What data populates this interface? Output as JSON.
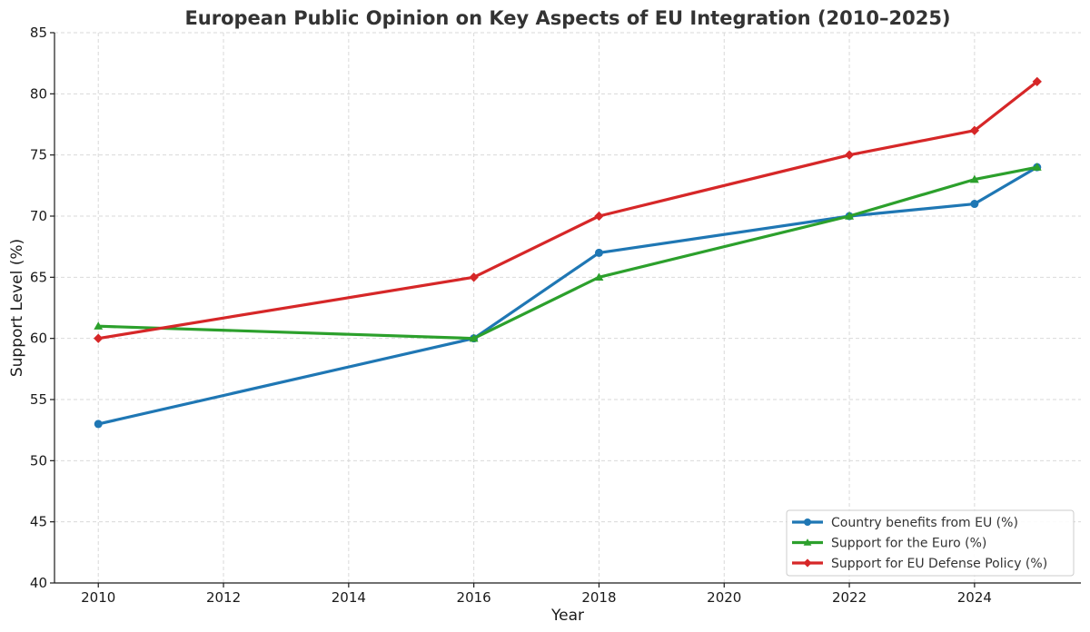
{
  "chart_data": {
    "type": "line",
    "title": "European Public Opinion on Key Aspects of EU Integration (2010–2025)",
    "xlabel": "Year",
    "ylabel": "Support Level (%)",
    "xlim": [
      2009.3,
      2025.7
    ],
    "ylim": [
      40,
      85
    ],
    "xticks": [
      2010,
      2012,
      2014,
      2016,
      2018,
      2020,
      2022,
      2024
    ],
    "yticks": [
      40,
      45,
      50,
      55,
      60,
      65,
      70,
      75,
      80,
      85
    ],
    "grid": true,
    "legend_position": "bottom-right",
    "series": [
      {
        "name": "Country benefits from EU (%)",
        "color": "#1f77b4",
        "marker": "circle",
        "x": [
          2010,
          2016,
          2018,
          2022,
          2024,
          2025
        ],
        "values": [
          53,
          60,
          67,
          70,
          71,
          74
        ]
      },
      {
        "name": "Support for the Euro (%)",
        "color": "#2ca02c",
        "marker": "triangle",
        "x": [
          2010,
          2016,
          2018,
          2022,
          2024,
          2025
        ],
        "values": [
          61,
          60,
          65,
          70,
          73,
          74
        ]
      },
      {
        "name": "Support for EU Defense Policy (%)",
        "color": "#d62728",
        "marker": "diamond",
        "x": [
          2010,
          2016,
          2018,
          2022,
          2024,
          2025
        ],
        "values": [
          60,
          65,
          70,
          75,
          77,
          81
        ]
      }
    ]
  }
}
